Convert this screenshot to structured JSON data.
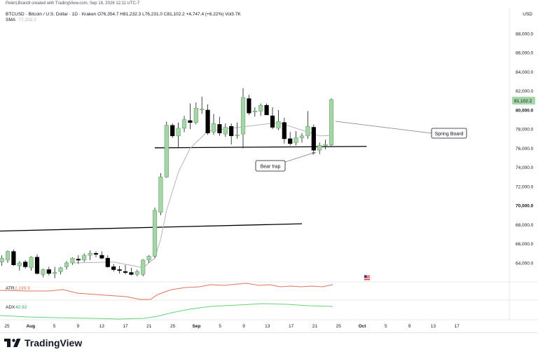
{
  "header": {
    "attribution": "PeterLBrandt created with TradingView.com, Sep 18, 2026 12:11 UTC-7",
    "symbol_line": "BTCUSD · Bitcoin / U.S. Dollar · 1D · Kraken  O76,354.7  H81,232.3  L76,231.0  C81,102.2  +4,747.4 (+6.22%)  Vol3.7K",
    "sma_label": "SMA",
    "sma_value": "77,332.2"
  },
  "currency": "USD",
  "price_axis": {
    "labels": [
      "88,000.0",
      "86,000.0",
      "84,000.0",
      "82,000.0",
      "80,000.0",
      "78,000.0",
      "76,000.0",
      "74,000.0",
      "72,000.0",
      "70,000.0",
      "68,000.0",
      "66,000.0",
      "64,000.0"
    ],
    "values": [
      88000,
      86000,
      84000,
      82000,
      80000,
      78000,
      76000,
      74000,
      72000,
      70000,
      68000,
      66000,
      64000
    ],
    "bold_labels": [
      "80,000.0",
      "70,000.0"
    ],
    "last_price_label": "81,102.2"
  },
  "time_axis": {
    "labels": [
      "25",
      "Aug",
      "5",
      "9",
      "13",
      "17",
      "21",
      "25",
      "Sep",
      "5",
      "9",
      "13",
      "17",
      "21",
      "25",
      "Oct",
      "5",
      "9",
      "13",
      "17"
    ],
    "bold_labels": [
      "Aug",
      "Sep",
      "Oct"
    ]
  },
  "annotations": {
    "spring_board": "Spring Board",
    "bear_trap": "Bear trap"
  },
  "indicators": {
    "atr_label": "ATR",
    "atr_value": "2,199.9",
    "adx_label": "ADX",
    "adx_value": "42.92"
  },
  "colors": {
    "up_candle": "#a5d6a7",
    "down_candle": "#000000",
    "sma_line": "#b2b5be",
    "atr_line": "#e0735f",
    "adx_line": "#66d17a",
    "trendline": "#000000"
  },
  "branding": {
    "name": "TradingView"
  },
  "chart_data": {
    "type": "candlestick",
    "symbol": "BTCUSD",
    "timeframe": "1D",
    "x_range": [
      "Jul 25",
      "Oct 20"
    ],
    "ylim": [
      62000,
      90000
    ],
    "grid": false,
    "candles": [
      {
        "date": "Jul 24",
        "o": 64100,
        "h": 64800,
        "l": 63700,
        "c": 64500
      },
      {
        "date": "Jul 25",
        "o": 64300,
        "h": 65300,
        "l": 64000,
        "c": 65200
      },
      {
        "date": "Jul 26",
        "o": 65200,
        "h": 65400,
        "l": 63700,
        "c": 63800
      },
      {
        "date": "Jul 27",
        "o": 63700,
        "h": 64200,
        "l": 63200,
        "c": 64000
      },
      {
        "date": "Jul 28",
        "o": 64100,
        "h": 64300,
        "l": 63400,
        "c": 63600
      },
      {
        "date": "Jul 29",
        "o": 63500,
        "h": 64700,
        "l": 63200,
        "c": 64600
      },
      {
        "date": "Jul 30",
        "o": 64600,
        "h": 64900,
        "l": 62800,
        "c": 62900
      },
      {
        "date": "Jul 31",
        "o": 62800,
        "h": 63400,
        "l": 62500,
        "c": 63300
      },
      {
        "date": "Aug 1",
        "o": 63300,
        "h": 63600,
        "l": 62700,
        "c": 62900
      },
      {
        "date": "Aug 2",
        "o": 62900,
        "h": 63600,
        "l": 62400,
        "c": 63000
      },
      {
        "date": "Aug 3",
        "o": 63100,
        "h": 63600,
        "l": 62800,
        "c": 63500
      },
      {
        "date": "Aug 4",
        "o": 63600,
        "h": 64200,
        "l": 63300,
        "c": 64000
      },
      {
        "date": "Aug 5",
        "o": 64000,
        "h": 64600,
        "l": 63800,
        "c": 64500
      },
      {
        "date": "Aug 6",
        "o": 64400,
        "h": 64800,
        "l": 63900,
        "c": 64300
      },
      {
        "date": "Aug 7",
        "o": 64300,
        "h": 65000,
        "l": 64100,
        "c": 64800
      },
      {
        "date": "Aug 8",
        "o": 64800,
        "h": 65300,
        "l": 64300,
        "c": 65000
      },
      {
        "date": "Aug 9",
        "o": 65000,
        "h": 65200,
        "l": 64600,
        "c": 64900
      },
      {
        "date": "Aug 10",
        "o": 64800,
        "h": 65200,
        "l": 64400,
        "c": 64500
      },
      {
        "date": "Aug 11",
        "o": 64500,
        "h": 64800,
        "l": 63500,
        "c": 63600
      },
      {
        "date": "Aug 12",
        "o": 63600,
        "h": 63900,
        "l": 63100,
        "c": 63300
      },
      {
        "date": "Aug 13",
        "o": 63300,
        "h": 63700,
        "l": 62900,
        "c": 63200
      },
      {
        "date": "Aug 14",
        "o": 63100,
        "h": 63800,
        "l": 62800,
        "c": 63000
      },
      {
        "date": "Aug 15",
        "o": 63000,
        "h": 63500,
        "l": 62700,
        "c": 62800
      },
      {
        "date": "Aug 16",
        "o": 62800,
        "h": 63300,
        "l": 62600,
        "c": 63100
      },
      {
        "date": "Aug 17",
        "o": 62800,
        "h": 64400,
        "l": 62600,
        "c": 64300
      },
      {
        "date": "Aug 18",
        "o": 64300,
        "h": 64800,
        "l": 64000,
        "c": 64700
      },
      {
        "date": "Aug 19",
        "o": 64700,
        "h": 69800,
        "l": 64500,
        "c": 69500
      },
      {
        "date": "Aug 20",
        "o": 69300,
        "h": 73400,
        "l": 69000,
        "c": 73000
      },
      {
        "date": "Aug 21",
        "o": 73000,
        "h": 78800,
        "l": 72900,
        "c": 78400
      },
      {
        "date": "Aug 22",
        "o": 78400,
        "h": 78600,
        "l": 77100,
        "c": 77300
      },
      {
        "date": "Aug 23",
        "o": 77300,
        "h": 78700,
        "l": 76000,
        "c": 78100
      },
      {
        "date": "Aug 24",
        "o": 78100,
        "h": 79400,
        "l": 77700,
        "c": 79000
      },
      {
        "date": "Aug 25",
        "o": 78900,
        "h": 80700,
        "l": 78000,
        "c": 78700
      },
      {
        "date": "Aug 26",
        "o": 78700,
        "h": 80800,
        "l": 78500,
        "c": 80200
      },
      {
        "date": "Aug 27",
        "o": 80100,
        "h": 81400,
        "l": 79600,
        "c": 80100
      },
      {
        "date": "Aug 28",
        "o": 80000,
        "h": 80600,
        "l": 77400,
        "c": 77600
      },
      {
        "date": "Aug 29",
        "o": 77700,
        "h": 79600,
        "l": 77400,
        "c": 78600
      },
      {
        "date": "Aug 30",
        "o": 78500,
        "h": 79300,
        "l": 77300,
        "c": 77600
      },
      {
        "date": "Aug 31",
        "o": 77500,
        "h": 78600,
        "l": 77200,
        "c": 78200
      },
      {
        "date": "Sep 1",
        "o": 78300,
        "h": 78600,
        "l": 76400,
        "c": 77300
      },
      {
        "date": "Sep 2",
        "o": 77400,
        "h": 78700,
        "l": 77000,
        "c": 77400
      },
      {
        "date": "Sep 3",
        "o": 77500,
        "h": 82300,
        "l": 76000,
        "c": 81300
      },
      {
        "date": "Sep 4",
        "o": 81200,
        "h": 81600,
        "l": 79500,
        "c": 79700
      },
      {
        "date": "Sep 5",
        "o": 79800,
        "h": 80300,
        "l": 79300,
        "c": 79900
      },
      {
        "date": "Sep 6",
        "o": 79900,
        "h": 80700,
        "l": 79400,
        "c": 80500
      },
      {
        "date": "Sep 7",
        "o": 80500,
        "h": 80700,
        "l": 79500,
        "c": 79500
      },
      {
        "date": "Sep 8",
        "o": 79400,
        "h": 80300,
        "l": 78000,
        "c": 78200
      },
      {
        "date": "Sep 9",
        "o": 78100,
        "h": 80000,
        "l": 77900,
        "c": 78800
      },
      {
        "date": "Sep 10",
        "o": 78700,
        "h": 79200,
        "l": 76500,
        "c": 77000
      },
      {
        "date": "Sep 11",
        "o": 77000,
        "h": 77700,
        "l": 76300,
        "c": 76500
      },
      {
        "date": "Sep 12",
        "o": 76600,
        "h": 77800,
        "l": 76300,
        "c": 77100
      },
      {
        "date": "Sep 13",
        "o": 77100,
        "h": 77600,
        "l": 76600,
        "c": 77300
      },
      {
        "date": "Sep 14",
        "o": 77300,
        "h": 79900,
        "l": 77000,
        "c": 78300
      },
      {
        "date": "Sep 15",
        "o": 78200,
        "h": 78500,
        "l": 75600,
        "c": 75800
      },
      {
        "date": "Sep 16",
        "o": 75800,
        "h": 76600,
        "l": 75400,
        "c": 76300
      },
      {
        "date": "Sep 17",
        "o": 76300,
        "h": 76900,
        "l": 75900,
        "c": 76400
      },
      {
        "date": "Sep 18",
        "o": 76354.7,
        "h": 81232.3,
        "l": 76231.0,
        "c": 81102.2
      }
    ],
    "sma": [
      {
        "date": "Aug 5",
        "v": 64000
      },
      {
        "date": "Aug 12",
        "v": 64100
      },
      {
        "date": "Aug 17",
        "v": 63500
      },
      {
        "date": "Aug 19",
        "v": 64500
      },
      {
        "date": "Aug 20",
        "v": 66500
      },
      {
        "date": "Aug 21",
        "v": 69500
      },
      {
        "date": "Aug 23",
        "v": 73500
      },
      {
        "date": "Aug 25",
        "v": 76000
      },
      {
        "date": "Aug 28",
        "v": 77800
      },
      {
        "date": "Sep 1",
        "v": 78100
      },
      {
        "date": "Sep 5",
        "v": 78400
      },
      {
        "date": "Sep 9",
        "v": 78700
      },
      {
        "date": "Sep 13",
        "v": 77900
      },
      {
        "date": "Sep 16",
        "v": 77300
      },
      {
        "date": "Sep 18",
        "v": 77332.2
      }
    ],
    "trendlines": [
      {
        "name": "support",
        "from": {
          "date": "Aug 19",
          "v": 76050
        },
        "to": {
          "date": "Sep 24",
          "v": 76200
        }
      },
      {
        "name": "resistance",
        "from": {
          "date": "Jul 21",
          "v": 67300
        },
        "to": {
          "date": "Sep 13",
          "v": 68100
        }
      }
    ],
    "atr_value": 2199.9,
    "adx_value": 42.92
  }
}
